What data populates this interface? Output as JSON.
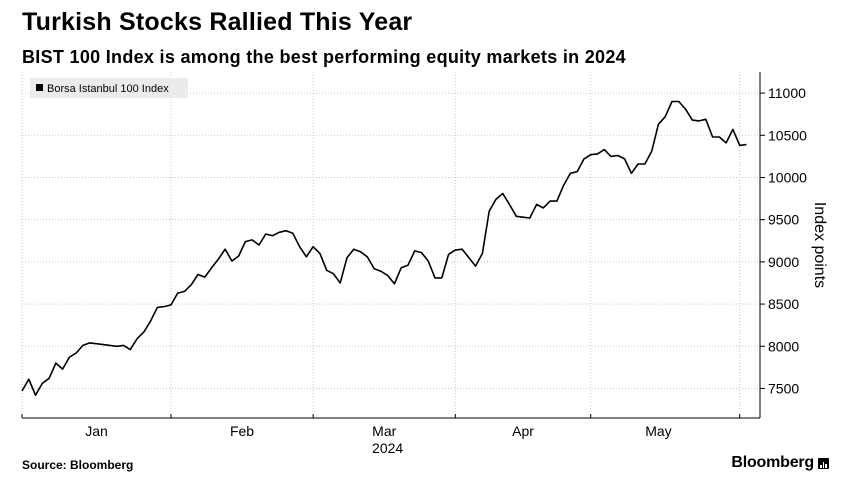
{
  "header": {
    "title": "Turkish Stocks Rallied This Year",
    "subtitle": "BIST 100 Index is among the best performing equity markets in 2024"
  },
  "footer": {
    "source": "Source: Bloomberg",
    "brand": "Bloomberg"
  },
  "chart_data": {
    "type": "line",
    "title": "Turkish Stocks Rallied This Year",
    "subtitle": "BIST 100 Index is among the best performing equity markets in 2024",
    "xlabel": "2024",
    "ylabel": "Index points",
    "ylim": [
      7150,
      11250
    ],
    "yticks": [
      7500,
      8000,
      8500,
      9000,
      9500,
      10000,
      10500,
      11000
    ],
    "ytick_labels": [
      "7500",
      "8000",
      "8500",
      "9000",
      "9500",
      "10000",
      "10500",
      "11000"
    ],
    "grid": true,
    "legend": {
      "position": "top-left",
      "entries": [
        "Borsa Istanbul 100 Index"
      ]
    },
    "x_range": [
      0,
      109
    ],
    "month_boundaries": [
      0,
      22,
      43,
      64,
      84,
      106
    ],
    "month_labels": [
      {
        "label": "Jan",
        "x": 11
      },
      {
        "label": "Feb",
        "x": 32.5
      },
      {
        "label": "Mar",
        "x": 53.5
      },
      {
        "label": "Apr",
        "x": 74
      },
      {
        "label": "May",
        "x": 94
      }
    ],
    "year_label": {
      "label": "2024",
      "x": 54
    },
    "series": [
      {
        "name": "Borsa Istanbul 100 Index",
        "x": [
          0,
          1,
          2,
          3,
          4,
          5,
          6,
          7,
          8,
          9,
          10,
          11,
          12,
          13,
          14,
          15,
          16,
          17,
          18,
          19,
          20,
          21,
          22,
          23,
          24,
          25,
          26,
          27,
          28,
          29,
          30,
          31,
          32,
          33,
          34,
          35,
          36,
          37,
          38,
          39,
          40,
          41,
          42,
          43,
          44,
          45,
          46,
          47,
          48,
          49,
          50,
          51,
          52,
          53,
          54,
          55,
          56,
          57,
          58,
          59,
          60,
          61,
          62,
          63,
          64,
          65,
          66,
          67,
          68,
          69,
          70,
          71,
          72,
          73,
          74,
          75,
          76,
          77,
          78,
          79,
          80,
          81,
          82,
          83,
          84,
          85,
          86,
          87,
          88,
          89,
          90,
          91,
          92,
          93,
          94,
          95,
          96,
          97,
          98,
          99,
          100,
          101,
          102,
          103,
          104,
          105,
          106,
          107
        ],
        "values": [
          7470,
          7610,
          7420,
          7560,
          7620,
          7800,
          7730,
          7870,
          7920,
          8010,
          8040,
          8030,
          8020,
          8010,
          8000,
          8010,
          7960,
          8090,
          8170,
          8300,
          8460,
          8470,
          8490,
          8630,
          8650,
          8730,
          8850,
          8820,
          8930,
          9030,
          9150,
          9010,
          9070,
          9240,
          9260,
          9200,
          9330,
          9310,
          9350,
          9370,
          9340,
          9180,
          9060,
          9180,
          9100,
          8900,
          8860,
          8750,
          9050,
          9150,
          9120,
          9060,
          8920,
          8890,
          8840,
          8740,
          8930,
          8960,
          9130,
          9110,
          9010,
          8810,
          8810,
          9090,
          9140,
          9150,
          9050,
          8950,
          9100,
          9600,
          9740,
          9810,
          9680,
          9540,
          9530,
          9520,
          9680,
          9640,
          9720,
          9720,
          9910,
          10050,
          10070,
          10220,
          10270,
          10280,
          10330,
          10250,
          10260,
          10220,
          10050,
          10160,
          10160,
          10310,
          10630,
          10720,
          10900,
          10900,
          10810,
          10680,
          10670,
          10690,
          10480,
          10480,
          10410,
          10570,
          10380,
          10390
        ]
      }
    ]
  }
}
